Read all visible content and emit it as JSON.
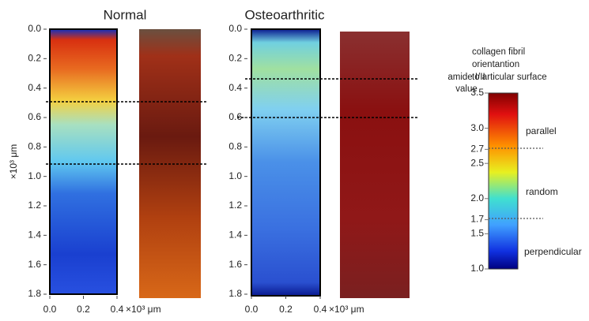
{
  "panels": [
    {
      "title": "Normal",
      "y_label": "×10³ μm",
      "x_unit": "×10³ μm",
      "yticks": [
        {
          "value": 0,
          "label": "0.0"
        },
        {
          "value": 0.2,
          "label": "0.2"
        },
        {
          "value": 0.4,
          "label": "0.4"
        },
        {
          "value": 0.6,
          "label": "0.6"
        },
        {
          "value": 0.8,
          "label": "0.8"
        },
        {
          "value": 1,
          "label": "1.0"
        },
        {
          "value": 1.2,
          "label": "1.2"
        },
        {
          "value": 1.4,
          "label": "1.4"
        },
        {
          "value": 1.6,
          "label": "1.6"
        },
        {
          "value": 1.8,
          "label": "1.8"
        }
      ],
      "xticks": [
        {
          "value": 0,
          "label": "0.0"
        },
        {
          "value": 0.2,
          "label": "0.2"
        },
        {
          "value": 0.4,
          "label": "0.4"
        }
      ]
    },
    {
      "title": "Osteoarthritic",
      "x_unit": "×10³ μm",
      "yticks": [
        {
          "value": 0,
          "label": "0.0"
        },
        {
          "value": 0.2,
          "label": "0.2"
        },
        {
          "value": 0.4,
          "label": "0.4"
        },
        {
          "value": 0.6,
          "label": "0.6"
        },
        {
          "value": 0.8,
          "label": "0.8"
        },
        {
          "value": 1,
          "label": "1.0"
        },
        {
          "value": 1.2,
          "label": "1.2"
        },
        {
          "value": 1.4,
          "label": "1.4"
        },
        {
          "value": 1.6,
          "label": "1.6"
        },
        {
          "value": 1.8,
          "label": "1.8"
        }
      ],
      "xticks": [
        {
          "value": 0,
          "label": "0.0"
        },
        {
          "value": 0.2,
          "label": "0.2"
        },
        {
          "value": 0.4,
          "label": "0.4"
        }
      ]
    }
  ],
  "colorbar": {
    "value_title": [
      "amide I/II",
      "value"
    ],
    "orientation_title": [
      "collagen fibril",
      "orientantion",
      "to articular surface"
    ],
    "ticks": [
      {
        "value": 3.5,
        "label": "3.5"
      },
      {
        "value": 3,
        "label": "3.0"
      },
      {
        "value": 2.7,
        "label": "2.7"
      },
      {
        "value": 2.5,
        "label": "2.5"
      },
      {
        "value": 2,
        "label": "2.0"
      },
      {
        "value": 1.7,
        "label": "1.7"
      },
      {
        "value": 1.5,
        "label": "1.5"
      },
      {
        "value": 1,
        "label": "1.0"
      }
    ],
    "labels": [
      "parallel",
      "random",
      "perpendicular"
    ]
  }
}
